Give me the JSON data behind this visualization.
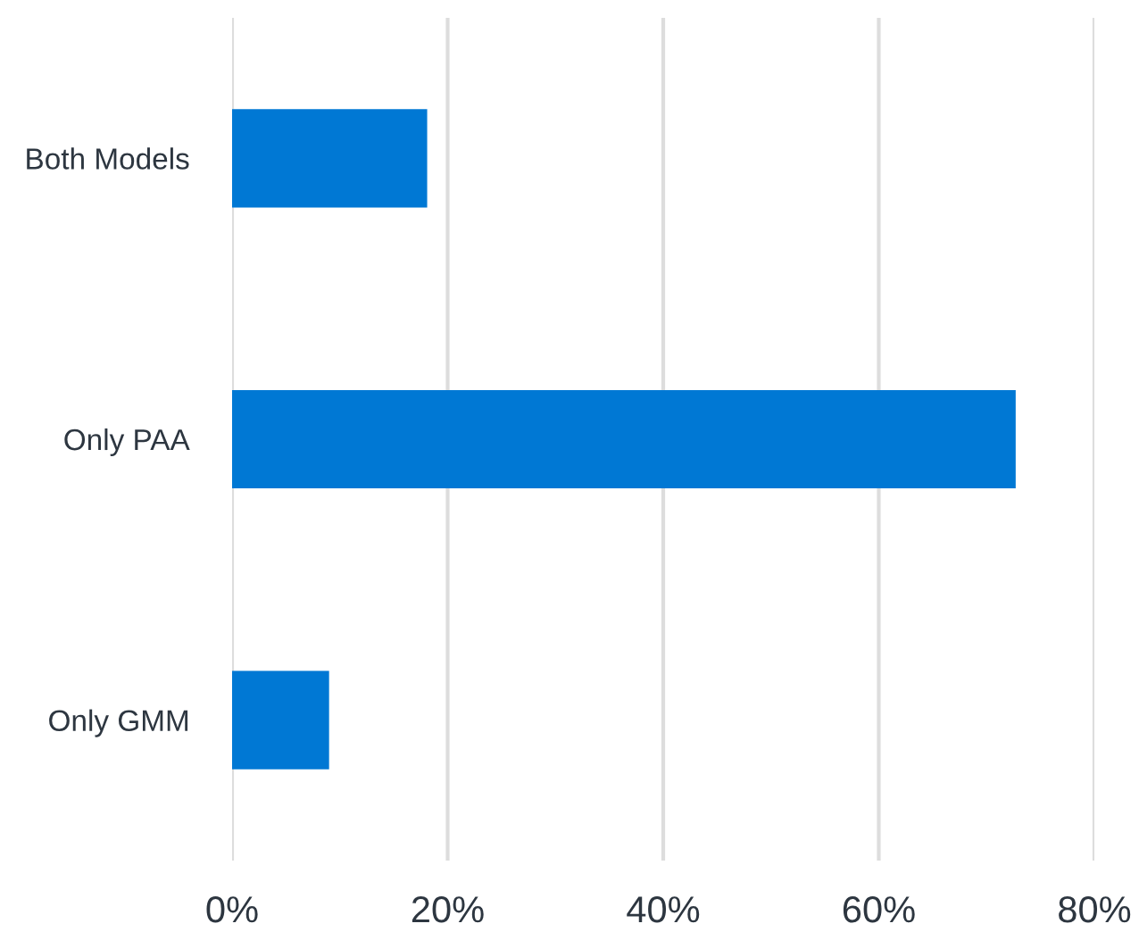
{
  "chart_data": {
    "type": "bar",
    "orientation": "horizontal",
    "categories": [
      "Both Models",
      "Only PAA",
      "Only GMM"
    ],
    "values": [
      18.1,
      72.7,
      9.0
    ],
    "color": "#0078d4",
    "xlim": [
      0,
      80
    ],
    "xticks": [
      {
        "value": 0,
        "label": "0%"
      },
      {
        "value": 20,
        "label": "20%"
      },
      {
        "value": 40,
        "label": "40%"
      },
      {
        "value": 60,
        "label": "60%"
      },
      {
        "value": 80,
        "label": "80%"
      }
    ],
    "grid": "x"
  }
}
